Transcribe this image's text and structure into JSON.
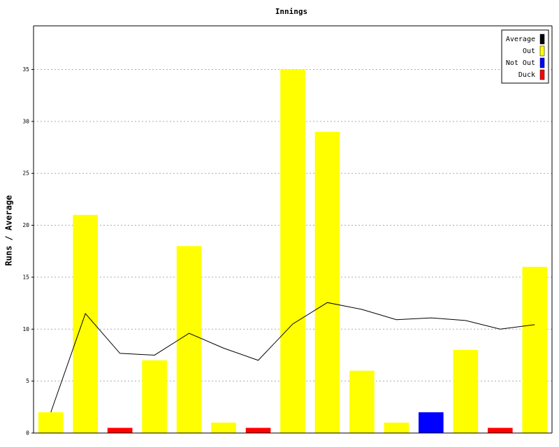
{
  "chart_data": {
    "type": "bar",
    "title": "Innings",
    "y_label": "Runs / Average",
    "categories": [
      null,
      null,
      null,
      null,
      null,
      null,
      null,
      null,
      null,
      null,
      null,
      null,
      null,
      null,
      null
    ],
    "series": [
      {
        "name": "Average",
        "color": "#000000",
        "kind": "line",
        "values": [
          2,
          11.5,
          7.67,
          7.5,
          9.6,
          8.17,
          7,
          10.5,
          12.56,
          11.9,
          10.91,
          11.09,
          10.83,
          10,
          10.43
        ]
      },
      {
        "name": "Out",
        "color": "#ffff00",
        "kind": "bar",
        "values": [
          2,
          21,
          null,
          7,
          18,
          1,
          null,
          35,
          29,
          6,
          1,
          null,
          8,
          null,
          16
        ]
      },
      {
        "name": "Not Out",
        "color": "#0000ff",
        "kind": "bar",
        "values": [
          null,
          null,
          null,
          null,
          null,
          null,
          null,
          null,
          null,
          null,
          null,
          2,
          null,
          null,
          null
        ]
      },
      {
        "name": "Duck",
        "color": "#ff0000",
        "kind": "bar",
        "values": [
          null,
          null,
          0.5,
          null,
          null,
          null,
          0.5,
          null,
          null,
          null,
          null,
          null,
          null,
          0.5,
          null
        ]
      }
    ],
    "ylim": [
      0,
      39.2
    ],
    "yticks": [
      0,
      5,
      10,
      15,
      20,
      25,
      30,
      35
    ],
    "grid": true,
    "legend": "top-right"
  }
}
